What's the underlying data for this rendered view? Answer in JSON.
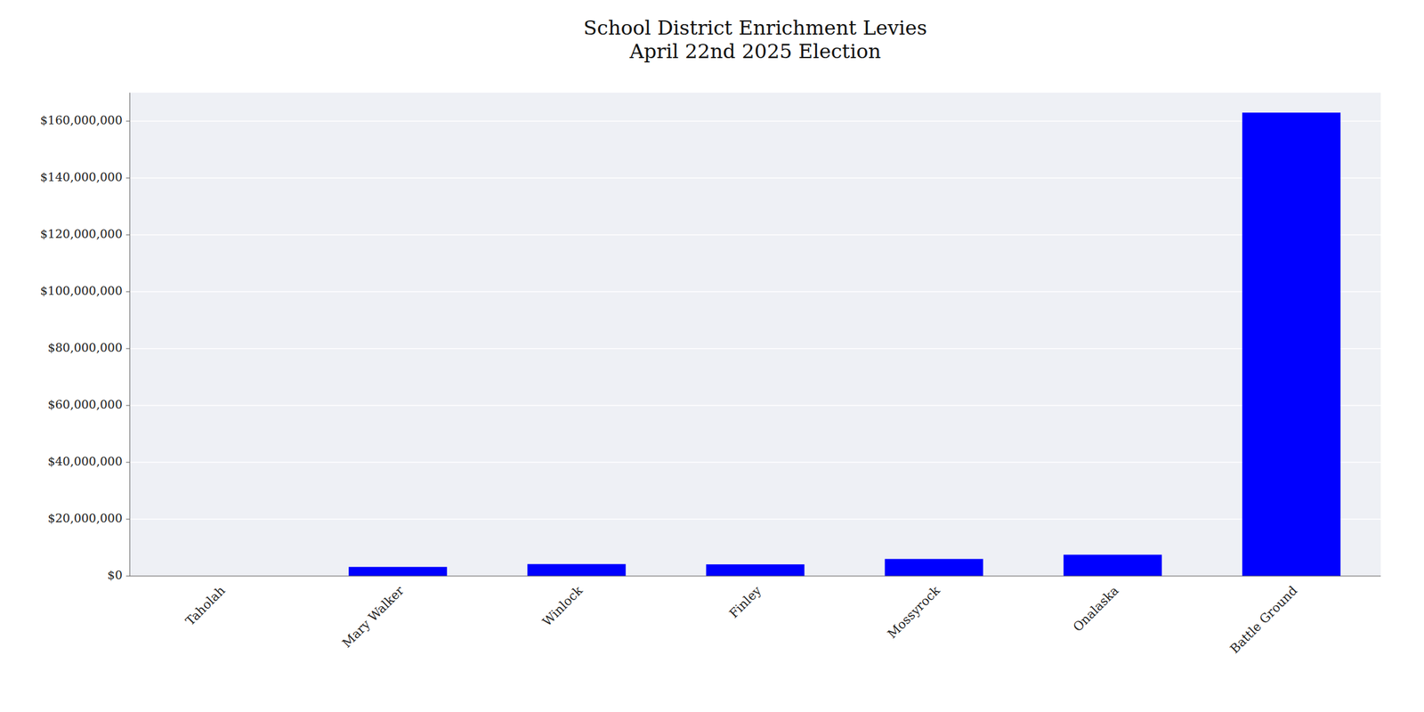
{
  "chart_data": {
    "type": "bar",
    "title": "School District Enrichment Levies\nApril 22nd 2025 Election",
    "categories": [
      "Taholah",
      "Mary Walker",
      "Winlock",
      "Finley",
      "Mossyrock",
      "Onalaska",
      "Battle Ground"
    ],
    "values": [
      0,
      3200000,
      4200000,
      4100000,
      6000000,
      7500000,
      163000000
    ],
    "color": "#0000ff",
    "ylim": [
      0,
      170000000
    ],
    "yticks": [
      {
        "value": 0,
        "label": "$0"
      },
      {
        "value": 20000000,
        "label": "$20,000,000"
      },
      {
        "value": 40000000,
        "label": "$40,000,000"
      },
      {
        "value": 60000000,
        "label": "$60,000,000"
      },
      {
        "value": 80000000,
        "label": "$80,000,000"
      },
      {
        "value": 100000000,
        "label": "$100,000,000"
      },
      {
        "value": 120000000,
        "label": "$120,000,000"
      },
      {
        "value": 140000000,
        "label": "$140,000,000"
      },
      {
        "value": 160000000,
        "label": "$160,000,000"
      }
    ],
    "grid": true
  }
}
